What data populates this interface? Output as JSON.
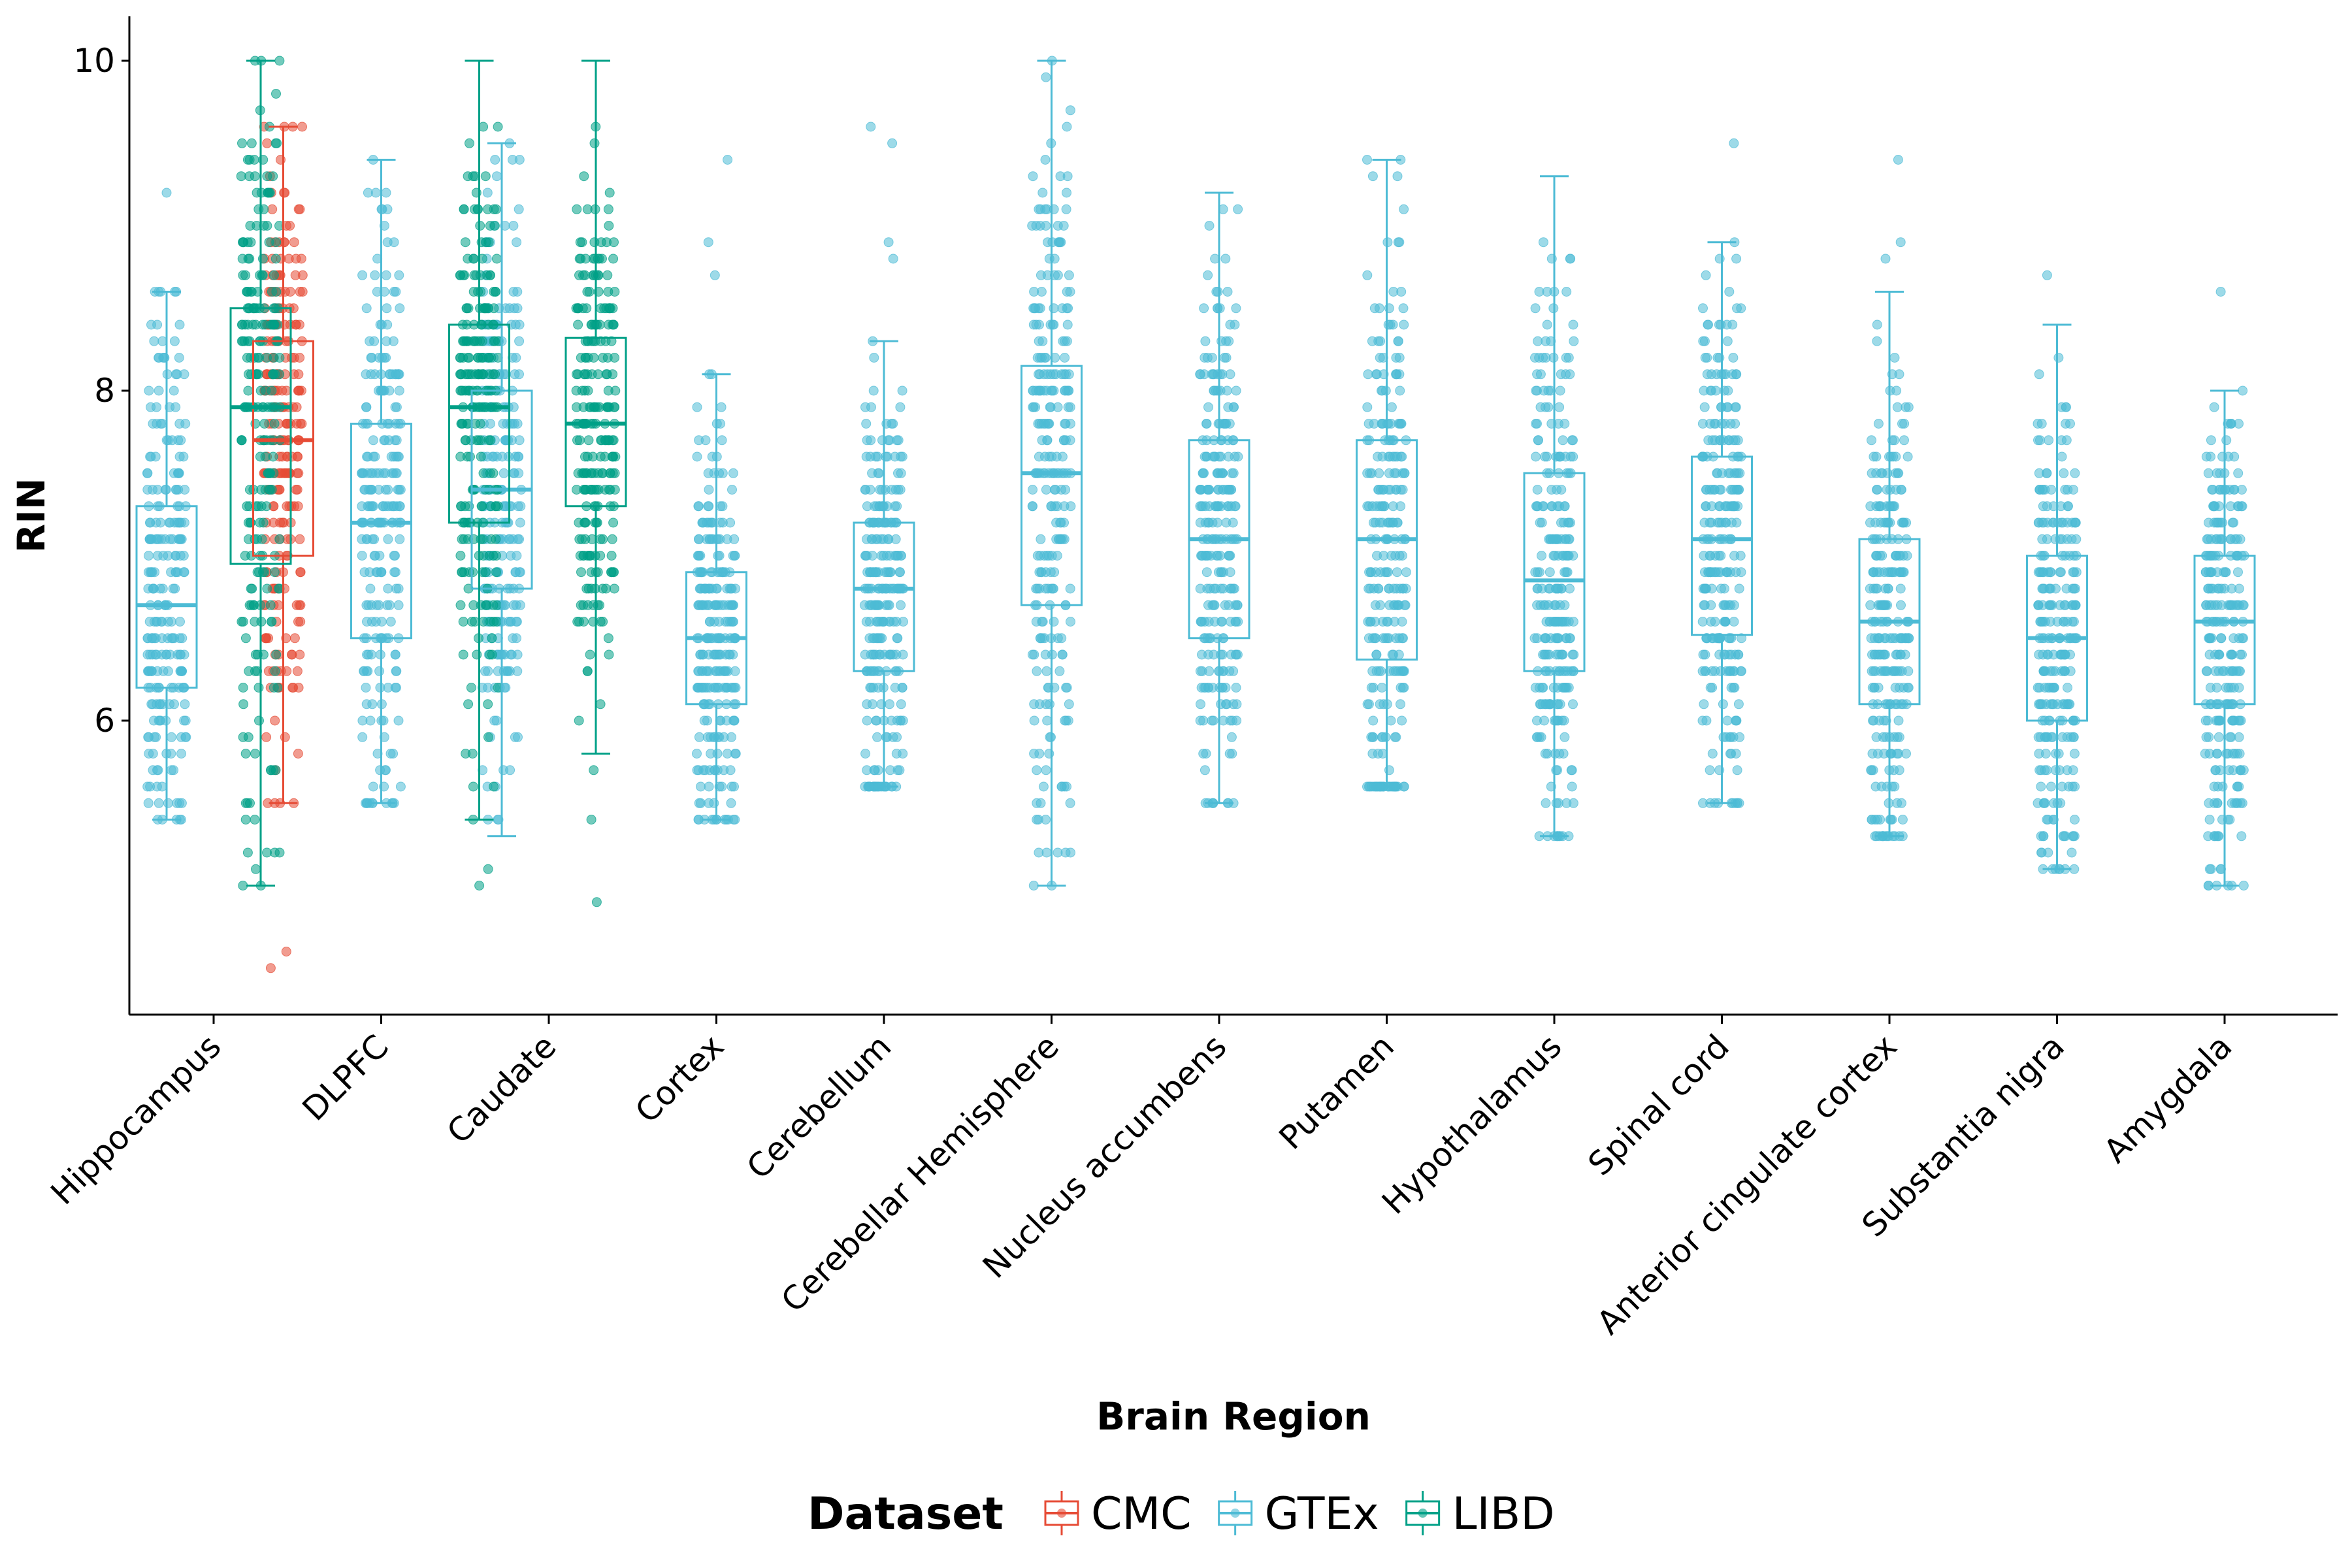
{
  "chart_data": {
    "type": "boxplot",
    "xlabel": "Brain Region",
    "ylabel": "RIN",
    "ylim": [
      4.3,
      10.3
    ],
    "yticks": [
      6,
      8,
      10
    ],
    "grid": false,
    "legend": {
      "title": "Dataset",
      "position": "bottom"
    },
    "colors": {
      "CMC": "#E64B35",
      "GTEx": "#4DBBD5",
      "LIBD": "#00A087"
    },
    "categories": [
      "Hippocampus",
      "DLPFC",
      "Caudate",
      "Cortex",
      "Cerebellum",
      "Cerebellar Hemisphere",
      "Nucleus accumbens",
      "Putamen",
      "Hypothalamus",
      "Spinal cord",
      "Anterior cingulate cortex",
      "Substantia nigra",
      "Amygdala"
    ],
    "series": [
      {
        "name": "CMC",
        "boxes": [
          {
            "category": "DLPFC",
            "min": 5.5,
            "q1": 7.0,
            "median": 7.7,
            "q3": 8.3,
            "max": 9.6,
            "outliers": [
              4.6,
              4.5
            ]
          }
        ]
      },
      {
        "name": "GTEx",
        "boxes": [
          {
            "category": "Hippocampus",
            "min": 5.4,
            "q1": 6.2,
            "median": 6.7,
            "q3": 7.3,
            "max": 8.6,
            "outliers": [
              9.2
            ]
          },
          {
            "category": "DLPFC",
            "min": 5.5,
            "q1": 6.5,
            "median": 7.2,
            "q3": 7.8,
            "max": 9.4,
            "outliers": []
          },
          {
            "category": "Caudate",
            "min": 5.3,
            "q1": 6.8,
            "median": 7.4,
            "q3": 8.0,
            "max": 9.5,
            "outliers": []
          },
          {
            "category": "Cortex",
            "min": 5.4,
            "q1": 6.1,
            "median": 6.5,
            "q3": 6.9,
            "max": 8.1,
            "outliers": [
              8.7,
              8.9,
              9.4
            ]
          },
          {
            "category": "Cerebellum",
            "min": 5.6,
            "q1": 6.3,
            "median": 6.8,
            "q3": 7.2,
            "max": 8.3,
            "outliers": [
              8.8,
              8.9,
              9.5,
              9.6
            ]
          },
          {
            "category": "Cerebellar Hemisphere",
            "min": 5.0,
            "q1": 6.7,
            "median": 7.5,
            "q3": 8.15,
            "max": 10.0,
            "outliers": []
          },
          {
            "category": "Nucleus accumbens",
            "min": 5.5,
            "q1": 6.5,
            "median": 7.1,
            "q3": 7.7,
            "max": 9.2,
            "outliers": []
          },
          {
            "category": "Putamen",
            "min": 5.6,
            "q1": 6.37,
            "median": 7.1,
            "q3": 7.7,
            "max": 9.4,
            "outliers": []
          },
          {
            "category": "Hypothalamus",
            "min": 5.3,
            "q1": 6.3,
            "median": 6.85,
            "q3": 7.5,
            "max": 9.3,
            "outliers": []
          },
          {
            "category": "Spinal cord",
            "min": 5.5,
            "q1": 6.52,
            "median": 7.1,
            "q3": 7.6,
            "max": 8.9,
            "outliers": [
              9.5
            ]
          },
          {
            "category": "Anterior cingulate cortex",
            "min": 5.3,
            "q1": 6.1,
            "median": 6.6,
            "q3": 7.1,
            "max": 8.6,
            "outliers": [
              8.8,
              8.9,
              9.4
            ]
          },
          {
            "category": "Substantia nigra",
            "min": 5.1,
            "q1": 6.0,
            "median": 6.5,
            "q3": 7.0,
            "max": 8.4,
            "outliers": [
              8.7
            ]
          },
          {
            "category": "Amygdala",
            "min": 5.0,
            "q1": 6.1,
            "median": 6.6,
            "q3": 7.0,
            "max": 8.0,
            "outliers": [
              8.6
            ]
          }
        ]
      },
      {
        "name": "LIBD",
        "boxes": [
          {
            "category": "Hippocampus",
            "min": 5.0,
            "q1": 6.95,
            "median": 7.9,
            "q3": 8.5,
            "max": 10.0,
            "outliers": []
          },
          {
            "category": "DLPFC",
            "min": 5.4,
            "q1": 7.2,
            "median": 7.9,
            "q3": 8.4,
            "max": 10.0,
            "outliers": [
              5.0,
              5.1
            ]
          },
          {
            "category": "Caudate",
            "min": 5.8,
            "q1": 7.3,
            "median": 7.8,
            "q3": 8.32,
            "max": 10.0,
            "outliers": [
              5.4,
              5.7,
              4.9
            ]
          }
        ]
      }
    ]
  }
}
